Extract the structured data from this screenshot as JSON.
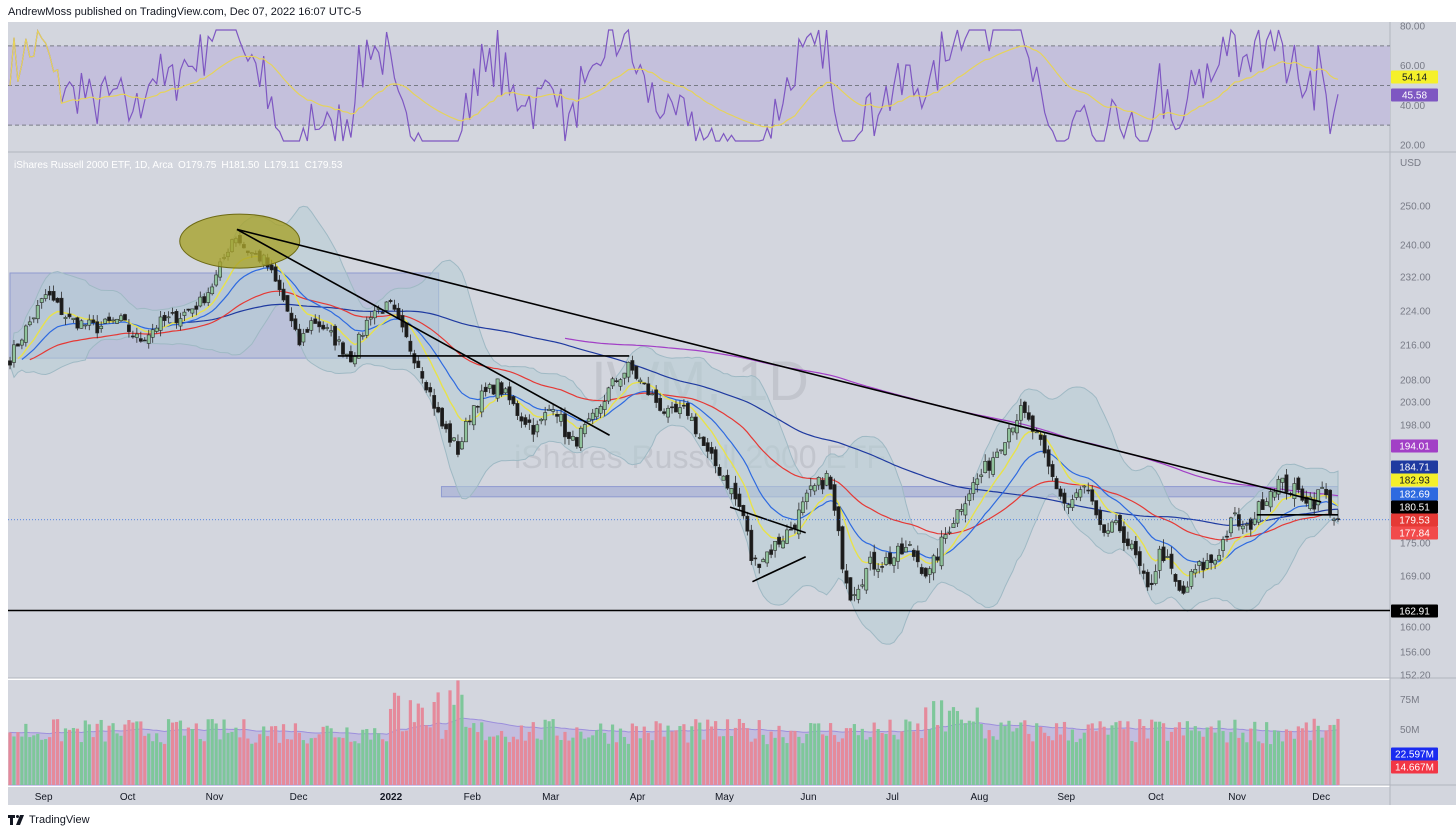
{
  "header": {
    "published": "AndrewMoss published on TradingView.com, Dec 07, 2022 16:07 UTC-5"
  },
  "footer": {
    "brand": "TradingView"
  },
  "colors": {
    "plot_bg": "#d3d6de",
    "rsi_band": "#c4c0dc",
    "rsi_line": "#7e57c2",
    "rsi_ma": "#e6d35a",
    "up": "#6fa87d",
    "down": "#e07b82",
    "ema10": "#e8e24a",
    "ema20": "#2e6ae0",
    "ema50": "#e53935",
    "ma100": "#1f3aa0",
    "ma200": "#a23fc6",
    "boll": "#b6cdd6",
    "vol_up": "#7ec79a",
    "vol_down": "#e58a9b",
    "vol_ma": "#b4a9e0"
  },
  "chart_data": {
    "type": "candlestick",
    "symbol_info": {
      "name": "iShares Russell 2000 ETF, 1D, Arca",
      "ohlc": [
        {
          "key": "O",
          "value": "179.75"
        },
        {
          "key": "H",
          "value": "181.50"
        },
        {
          "key": "L",
          "value": "179.11"
        },
        {
          "key": "C",
          "value": "179.53"
        }
      ]
    },
    "watermark": [
      "IWM, 1D",
      "iShares Russell 2000 ETF"
    ],
    "currency": "USD",
    "x_axis": {
      "labels": [
        {
          "text": "Sep",
          "date": "2021-09-01",
          "bold": false
        },
        {
          "text": "Oct",
          "date": "2021-10-01",
          "bold": false
        },
        {
          "text": "Nov",
          "date": "2021-11-01",
          "bold": false
        },
        {
          "text": "Dec",
          "date": "2021-12-01",
          "bold": false
        },
        {
          "text": "2022",
          "date": "2022-01-03",
          "bold": true
        },
        {
          "text": "Feb",
          "date": "2022-02-01",
          "bold": false
        },
        {
          "text": "Mar",
          "date": "2022-03-01",
          "bold": false
        },
        {
          "text": "Apr",
          "date": "2022-04-01",
          "bold": false
        },
        {
          "text": "May",
          "date": "2022-05-02",
          "bold": false
        },
        {
          "text": "Jun",
          "date": "2022-06-01",
          "bold": false
        },
        {
          "text": "Jul",
          "date": "2022-07-01",
          "bold": false
        },
        {
          "text": "Aug",
          "date": "2022-08-01",
          "bold": false
        },
        {
          "text": "Sep",
          "date": "2022-09-01",
          "bold": false
        },
        {
          "text": "Oct",
          "date": "2022-10-03",
          "bold": false
        },
        {
          "text": "Nov",
          "date": "2022-11-01",
          "bold": false
        },
        {
          "text": "Dec",
          "date": "2022-12-01",
          "bold": false
        }
      ]
    },
    "price_axis": {
      "ticks": [
        "250.00",
        "240.00",
        "232.00",
        "224.00",
        "216.00",
        "208.00",
        "203.00",
        "198.00",
        "175.00",
        "169.00",
        "160.00",
        "156.00",
        "152.20"
      ],
      "range": [
        150,
        260
      ]
    },
    "rsi_axis": {
      "ticks": [
        "80.00",
        "60.00",
        "40.00",
        "20.00"
      ],
      "band": [
        30,
        70
      ],
      "mid": 50,
      "range": [
        20,
        80
      ]
    },
    "volume_axis": {
      "ticks": [
        "75M",
        "50M"
      ]
    },
    "price_labels": [
      {
        "text": "194.01",
        "bg": "#a23fc6",
        "fg": "#ffffff",
        "value": 194.01
      },
      {
        "text": "184.71",
        "bg": "#1f3aa0",
        "fg": "#ffffff",
        "value": 184.71
      },
      {
        "text": "182.93",
        "bg": "#f5f02a",
        "fg": "#131722",
        "value": 182.93
      },
      {
        "text": "182.69",
        "bg": "#2e6ae0",
        "fg": "#ffffff",
        "value": 182.69
      },
      {
        "text": "180.51",
        "bg": "#000000",
        "fg": "#ffffff",
        "value": 180.51
      },
      {
        "text": "179.53",
        "bg": "#e53935",
        "fg": "#ffffff",
        "value": 179.53
      },
      {
        "text": "177.84",
        "bg": "#f24b4b",
        "fg": "#ffffff",
        "value": 177.84
      },
      {
        "text": "162.91",
        "bg": "#000000",
        "fg": "#ffffff",
        "value": 162.91
      }
    ],
    "rsi_labels": [
      {
        "text": "54.14",
        "bg": "#f5f02a",
        "fg": "#131722",
        "value": 54.14
      },
      {
        "text": "45.58",
        "bg": "#7e57c2",
        "fg": "#ffffff",
        "value": 45.58
      }
    ],
    "volume_labels": [
      {
        "text": "22.597M",
        "bg": "#1a2bf0",
        "fg": "#ffffff"
      },
      {
        "text": "14.667M",
        "bg": "#f23645",
        "fg": "#ffffff"
      }
    ],
    "ohlc_close_keypoints": [
      [
        "2021-08-20",
        213
      ],
      [
        "2021-08-25",
        219
      ],
      [
        "2021-09-02",
        228
      ],
      [
        "2021-09-10",
        222
      ],
      [
        "2021-09-20",
        220
      ],
      [
        "2021-09-28",
        222
      ],
      [
        "2021-10-05",
        217
      ],
      [
        "2021-10-12",
        221
      ],
      [
        "2021-10-20",
        223
      ],
      [
        "2021-10-27",
        226
      ],
      [
        "2021-11-01",
        231
      ],
      [
        "2021-11-08",
        243
      ],
      [
        "2021-11-12",
        239
      ],
      [
        "2021-11-19",
        236
      ],
      [
        "2021-11-26",
        226
      ],
      [
        "2021-12-01",
        216
      ],
      [
        "2021-12-06",
        222
      ],
      [
        "2021-12-10",
        220
      ],
      [
        "2021-12-20",
        213
      ],
      [
        "2021-12-27",
        224
      ],
      [
        "2022-01-03",
        225
      ],
      [
        "2022-01-07",
        219
      ],
      [
        "2022-01-14",
        210
      ],
      [
        "2022-01-21",
        198
      ],
      [
        "2022-01-27",
        193
      ],
      [
        "2022-02-02",
        203
      ],
      [
        "2022-02-10",
        207
      ],
      [
        "2022-02-18",
        200
      ],
      [
        "2022-02-24",
        197
      ],
      [
        "2022-03-02",
        203
      ],
      [
        "2022-03-08",
        194
      ],
      [
        "2022-03-15",
        198
      ],
      [
        "2022-03-23",
        207
      ],
      [
        "2022-03-29",
        211
      ],
      [
        "2022-04-05",
        205
      ],
      [
        "2022-04-12",
        200
      ],
      [
        "2022-04-19",
        201
      ],
      [
        "2022-04-26",
        192
      ],
      [
        "2022-05-02",
        188
      ],
      [
        "2022-05-09",
        180
      ],
      [
        "2022-05-12",
        171
      ],
      [
        "2022-05-19",
        174
      ],
      [
        "2022-05-26",
        178
      ],
      [
        "2022-06-02",
        185
      ],
      [
        "2022-06-08",
        188
      ],
      [
        "2022-06-13",
        172
      ],
      [
        "2022-06-16",
        166
      ],
      [
        "2022-06-23",
        171
      ],
      [
        "2022-06-30",
        172
      ],
      [
        "2022-07-07",
        174
      ],
      [
        "2022-07-14",
        169
      ],
      [
        "2022-07-21",
        178
      ],
      [
        "2022-07-28",
        185
      ],
      [
        "2022-08-04",
        190
      ],
      [
        "2022-08-12",
        198
      ],
      [
        "2022-08-16",
        201
      ],
      [
        "2022-08-22",
        195
      ],
      [
        "2022-08-26",
        189
      ],
      [
        "2022-09-01",
        182
      ],
      [
        "2022-09-08",
        186
      ],
      [
        "2022-09-13",
        177
      ],
      [
        "2022-09-20",
        178
      ],
      [
        "2022-09-26",
        172
      ],
      [
        "2022-09-30",
        166
      ],
      [
        "2022-10-05",
        174
      ],
      [
        "2022-10-12",
        165
      ],
      [
        "2022-10-17",
        170
      ],
      [
        "2022-10-24",
        172
      ],
      [
        "2022-10-31",
        180
      ],
      [
        "2022-11-04",
        177
      ],
      [
        "2022-11-10",
        183
      ],
      [
        "2022-11-15",
        187
      ],
      [
        "2022-11-22",
        185
      ],
      [
        "2022-11-29",
        183
      ],
      [
        "2022-12-01",
        186
      ],
      [
        "2022-12-05",
        180.5
      ],
      [
        "2022-12-07",
        179.53
      ]
    ],
    "annotations": {
      "highlight_ellipse": {
        "date": "2021-11-10",
        "price": 241
      },
      "range_box": {
        "from": "2021-08-20",
        "to": "2022-01-20",
        "low": 213,
        "high": 233
      },
      "horizontal_zone": {
        "from": "2022-01-21",
        "to": "2022-12-07",
        "low": 184,
        "high": 186
      },
      "trendlines": [
        {
          "from": [
            "2021-11-09",
            244
          ],
          "to": [
            "2022-12-01",
            183
          ]
        },
        {
          "from": [
            "2021-11-09",
            244
          ],
          "to": [
            "2022-03-22",
            196
          ]
        },
        {
          "from": [
            "2021-12-15",
            213.5
          ],
          "to": [
            "2022-03-29",
            213.5
          ]
        },
        {
          "from": [
            "2022-05-04",
            182
          ],
          "to": [
            "2022-05-31",
            177
          ]
        },
        {
          "from": [
            "2022-05-12",
            168
          ],
          "to": [
            "2022-05-31",
            172.5
          ]
        },
        {
          "from": [
            "2022-11-08",
            180.5
          ],
          "to": [
            "2022-12-07",
            180.5
          ]
        }
      ],
      "support_line": 162.91
    }
  }
}
